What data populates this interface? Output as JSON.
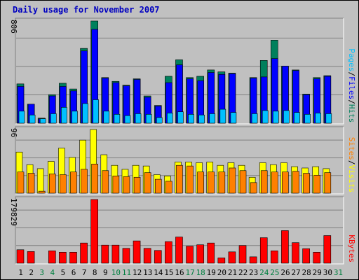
{
  "title": "Daily usage for November 2007",
  "colors": {
    "hits": "#00805c",
    "files": "#0000ff",
    "pages": "#00c0ff",
    "visits": "#ffff00",
    "sites": "#ff8000",
    "kbytes": "#ff0000",
    "panel_bg": "#c0c0c0",
    "grid": "#808080",
    "title": "#0000c0",
    "weekday": "#000000",
    "weekend": "#008040"
  },
  "chart_data": [
    {
      "type": "bar",
      "name": "hits-files-pages",
      "ymax_label": "806",
      "ymax": 806,
      "legend": [
        "Pages",
        "/",
        "Files",
        "/",
        "Hits"
      ],
      "categories": [
        "1",
        "2",
        "3",
        "4",
        "5",
        "6",
        "7",
        "8",
        "9",
        "10",
        "11",
        "12",
        "13",
        "14",
        "15",
        "16",
        "17",
        "18",
        "19",
        "20",
        "21",
        "22",
        "23",
        "24",
        "25",
        "26",
        "27",
        "28",
        "29",
        "30",
        "31"
      ],
      "series": [
        {
          "name": "Hits",
          "values": [
            310,
            150,
            40,
            225,
            315,
            270,
            590,
            806,
            360,
            330,
            300,
            350,
            215,
            140,
            370,
            500,
            360,
            370,
            420,
            405,
            395,
            0,
            360,
            495,
            655,
            450,
            420,
            230,
            360,
            375,
            0
          ]
        },
        {
          "name": "Files",
          "values": [
            290,
            150,
            35,
            215,
            290,
            255,
            570,
            740,
            355,
            320,
            295,
            345,
            205,
            135,
            320,
            460,
            350,
            335,
            400,
            385,
            390,
            0,
            355,
            365,
            510,
            450,
            415,
            225,
            350,
            370,
            0
          ]
        },
        {
          "name": "Pages",
          "values": [
            95,
            65,
            35,
            75,
            125,
            95,
            155,
            185,
            95,
            70,
            60,
            75,
            70,
            45,
            80,
            90,
            70,
            65,
            75,
            110,
            85,
            0,
            75,
            100,
            95,
            100,
            85,
            70,
            80,
            75,
            0
          ]
        }
      ]
    },
    {
      "type": "bar",
      "name": "visits-sites",
      "ymax_label": "96",
      "ymax": 96,
      "legend": [
        "Sites",
        "/",
        "Visits"
      ],
      "categories": [
        "1",
        "2",
        "3",
        "4",
        "5",
        "6",
        "7",
        "8",
        "9",
        "10",
        "11",
        "12",
        "13",
        "14",
        "15",
        "16",
        "17",
        "18",
        "19",
        "20",
        "21",
        "22",
        "23",
        "24",
        "25",
        "26",
        "27",
        "28",
        "29",
        "30",
        "31"
      ],
      "series": [
        {
          "name": "Visits",
          "values": [
            62,
            43,
            37,
            48,
            68,
            54,
            80,
            96,
            58,
            42,
            36,
            42,
            41,
            28,
            26,
            47,
            47,
            46,
            47,
            42,
            46,
            42,
            24,
            46,
            43,
            46,
            40,
            38,
            40,
            37,
            0
          ]
        },
        {
          "name": "Sites",
          "values": [
            32,
            30,
            3,
            29,
            28,
            32,
            36,
            44,
            34,
            26,
            25,
            24,
            31,
            21,
            18,
            42,
            41,
            32,
            32,
            32,
            38,
            34,
            16,
            34,
            32,
            32,
            33,
            30,
            27,
            31,
            0
          ]
        }
      ]
    },
    {
      "type": "bar",
      "name": "kbytes",
      "ymax_label": "179829",
      "ymax": 179829,
      "legend": [
        "KBytes"
      ],
      "categories": [
        "1",
        "2",
        "3",
        "4",
        "5",
        "6",
        "7",
        "8",
        "9",
        "10",
        "11",
        "12",
        "13",
        "14",
        "15",
        "16",
        "17",
        "18",
        "19",
        "20",
        "21",
        "22",
        "23",
        "24",
        "25",
        "26",
        "27",
        "28",
        "29",
        "30",
        "31"
      ],
      "series": [
        {
          "name": "KBytes",
          "values": [
            38000,
            33000,
            0,
            35000,
            31000,
            31000,
            57000,
            179829,
            51000,
            51000,
            42000,
            63000,
            42000,
            36000,
            61000,
            74000,
            48000,
            52000,
            57000,
            15000,
            32000,
            50000,
            18000,
            72000,
            35000,
            92000,
            58000,
            41000,
            31000,
            78000,
            0
          ]
        }
      ]
    }
  ],
  "weekend_days": [
    "3",
    "4",
    "10",
    "11",
    "17",
    "18",
    "24",
    "25",
    "31"
  ]
}
